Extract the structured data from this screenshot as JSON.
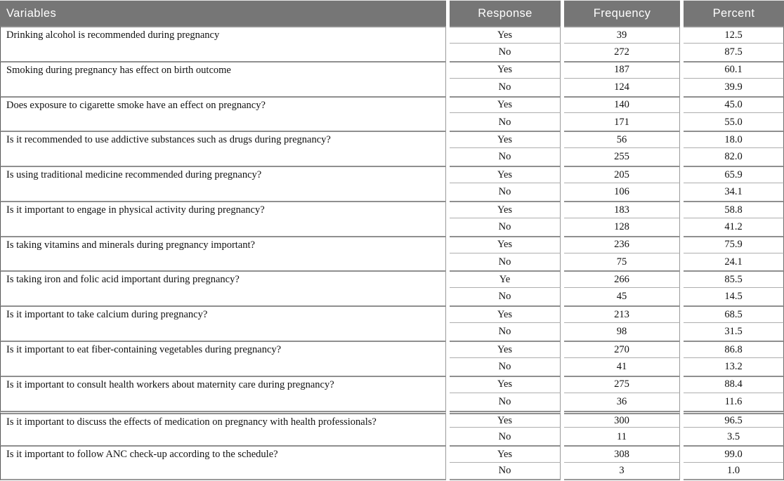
{
  "colors": {
    "header_bg": "#767676",
    "header_text": "#ffffff",
    "grid_line": "#9a9a9a",
    "body_text": "#111111"
  },
  "table": {
    "columns": [
      "Variables",
      "Response",
      "Frequency",
      "Percent"
    ],
    "groups": [
      {
        "variable": "Drinking alcohol is recommended during pregnancy",
        "rows": [
          {
            "response": "Yes",
            "frequency": 39,
            "percent": "12.5"
          },
          {
            "response": "No",
            "frequency": 272,
            "percent": "87.5"
          }
        ]
      },
      {
        "variable": "Smoking during pregnancy has effect on birth outcome",
        "rows": [
          {
            "response": "Yes",
            "frequency": 187,
            "percent": "60.1"
          },
          {
            "response": "No",
            "frequency": 124,
            "percent": "39.9"
          }
        ]
      },
      {
        "variable": "Does exposure to cigarette smoke have an effect on pregnancy?",
        "rows": [
          {
            "response": "Yes",
            "frequency": 140,
            "percent": "45.0"
          },
          {
            "response": "No",
            "frequency": 171,
            "percent": "55.0"
          }
        ]
      },
      {
        "variable": "Is it recommended to use addictive substances such as drugs during pregnancy?",
        "rows": [
          {
            "response": "Yes",
            "frequency": 56,
            "percent": "18.0"
          },
          {
            "response": "No",
            "frequency": 255,
            "percent": "82.0"
          }
        ]
      },
      {
        "variable": "Is using traditional medicine recommended during pregnancy?",
        "rows": [
          {
            "response": "Yes",
            "frequency": 205,
            "percent": "65.9"
          },
          {
            "response": "No",
            "frequency": 106,
            "percent": "34.1"
          }
        ]
      },
      {
        "variable": "Is it important to engage in physical activity during pregnancy?",
        "rows": [
          {
            "response": "Yes",
            "frequency": 183,
            "percent": "58.8"
          },
          {
            "response": "No",
            "frequency": 128,
            "percent": "41.2"
          }
        ]
      },
      {
        "variable": "Is taking vitamins and minerals during pregnancy important?",
        "rows": [
          {
            "response": "Yes",
            "frequency": 236,
            "percent": "75.9"
          },
          {
            "response": "No",
            "frequency": 75,
            "percent": "24.1"
          }
        ]
      },
      {
        "variable": "Is taking iron and folic acid important during pregnancy?",
        "rows": [
          {
            "response": "Ye",
            "frequency": 266,
            "percent": "85.5"
          },
          {
            "response": "No",
            "frequency": 45,
            "percent": "14.5"
          }
        ]
      },
      {
        "variable": "Is it important to take calcium during pregnancy?",
        "rows": [
          {
            "response": "Yes",
            "frequency": 213,
            "percent": "68.5"
          },
          {
            "response": "No",
            "frequency": 98,
            "percent": "31.5"
          }
        ]
      },
      {
        "variable": "Is it important to eat fiber-containing vegetables during pregnancy?",
        "rows": [
          {
            "response": "Yes",
            "frequency": 270,
            "percent": "86.8"
          },
          {
            "response": "No",
            "frequency": 41,
            "percent": "13.2"
          }
        ]
      },
      {
        "variable": "Is it important to consult health workers about maternity care during pregnancy?",
        "rows": [
          {
            "response": "Yes",
            "frequency": 275,
            "percent": "88.4"
          },
          {
            "response": "No",
            "frequency": 36,
            "percent": "11.6"
          }
        ]
      },
      {
        "variable": "Is it important to discuss the effects of medication on pregnancy with health professionals?",
        "heavy_rule_before": true,
        "rows": [
          {
            "response": "Yes",
            "frequency": 300,
            "percent": "96.5"
          },
          {
            "response": "No",
            "frequency": 11,
            "percent": "3.5"
          }
        ]
      },
      {
        "variable": "Is it important to follow ANC check-up according to the schedule?",
        "rows": [
          {
            "response": "Yes",
            "frequency": 308,
            "percent": "99.0"
          },
          {
            "response": "No",
            "frequency": 3,
            "percent": "1.0"
          }
        ]
      }
    ]
  }
}
